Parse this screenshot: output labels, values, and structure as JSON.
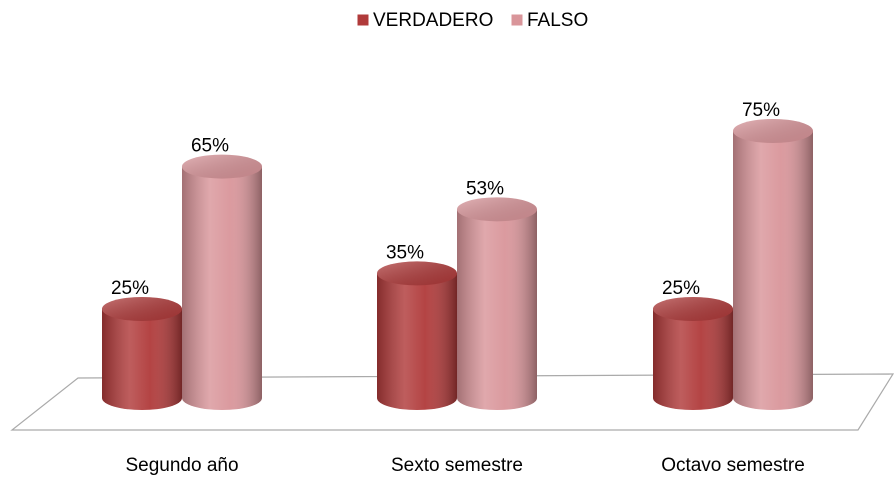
{
  "chart_data": {
    "type": "bar3d",
    "categories": [
      "Segundo año",
      "Sexto semestre",
      "Octavo semestre"
    ],
    "series": [
      {
        "name": "VERDADERO",
        "color": "#b03a3a",
        "values": [
          25,
          35,
          25
        ],
        "value_labels": [
          "25%",
          "35%",
          "25%"
        ]
      },
      {
        "name": "FALSO",
        "color": "#d9959a",
        "values": [
          65,
          53,
          75
        ],
        "value_labels": [
          "65%",
          "53%",
          "75%"
        ]
      }
    ],
    "legend": "top"
  }
}
